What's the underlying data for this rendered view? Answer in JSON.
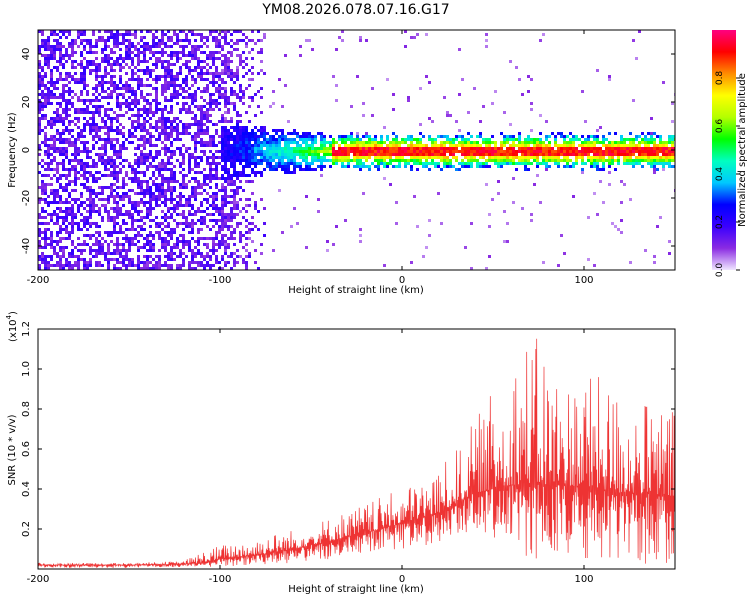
{
  "title": "YM08.2026.078.07.16.G17",
  "chart_data": [
    {
      "type": "heatmap",
      "xlabel": "Height of straight line (km)",
      "ylabel": "Frequency (Hz)",
      "xlim": [
        -200,
        150
      ],
      "ylim": [
        -50,
        50
      ],
      "xticks": [
        -200,
        -100,
        0,
        100
      ],
      "yticks": [
        -40,
        -20,
        0,
        20,
        40
      ],
      "ridge": {
        "frequency": 0,
        "start_height": -100,
        "strong_from_height": -40
      },
      "colorbar": {
        "label": "Normalized spectral amplitude",
        "range": [
          0,
          1
        ],
        "ticks": [
          0.0,
          0.2,
          0.4,
          0.6,
          0.8
        ],
        "tick_labels": [
          "0.0",
          "0.2",
          "0.4",
          "0.6",
          "0.8"
        ],
        "colors": [
          "#f0e6ff",
          "#8a2be2",
          "#3a00ff",
          "#0000ff",
          "#00c8ff",
          "#00ffc0",
          "#00ff00",
          "#b4ff00",
          "#ffff00",
          "#ff8c00",
          "#ff0000",
          "#ff0080"
        ]
      }
    },
    {
      "type": "line",
      "xlabel": "Height of straight line (km)",
      "ylabel": "SNR (10 * v/v)",
      "scale_label": "(x10",
      "scale_exp": "4",
      "xlim": [
        -200,
        150
      ],
      "ylim": [
        0,
        1.2
      ],
      "xticks": [
        -200,
        -100,
        0,
        100
      ],
      "yticks": [
        0.2,
        0.4,
        0.6,
        0.8,
        1.0,
        1.2
      ],
      "ytick_labels": [
        "0.2",
        "0.4",
        "0.6",
        "0.8",
        "1.0",
        "1.2"
      ],
      "color": "#ee3333",
      "series": [
        {
          "name": "SNR",
          "x": [
            -200,
            -150,
            -120,
            -110,
            -100,
            -80,
            -60,
            -40,
            -20,
            0,
            20,
            30,
            40,
            50,
            60,
            70,
            80,
            90,
            100,
            110,
            120,
            130,
            140,
            150
          ],
          "mean": [
            0.02,
            0.02,
            0.025,
            0.03,
            0.05,
            0.07,
            0.1,
            0.14,
            0.18,
            0.23,
            0.28,
            0.33,
            0.38,
            0.4,
            0.42,
            0.43,
            0.42,
            0.42,
            0.41,
            0.4,
            0.38,
            0.38,
            0.37,
            0.36
          ],
          "peak": [
            0.03,
            0.03,
            0.04,
            0.09,
            0.12,
            0.16,
            0.2,
            0.26,
            0.33,
            0.4,
            0.5,
            0.6,
            0.75,
            0.9,
            1.05,
            1.2,
            1.1,
            0.95,
            1.0,
            0.95,
            0.9,
            0.85,
            0.82,
            0.8
          ],
          "trough": [
            0.005,
            0.005,
            0.01,
            0.01,
            0.01,
            0.02,
            0.03,
            0.05,
            0.08,
            0.1,
            0.13,
            0.16,
            0.18,
            0.15,
            0.08,
            0.05,
            0.05,
            0.05,
            0.04,
            0.04,
            0.03,
            0.03,
            0.02,
            0.02
          ]
        }
      ]
    }
  ]
}
